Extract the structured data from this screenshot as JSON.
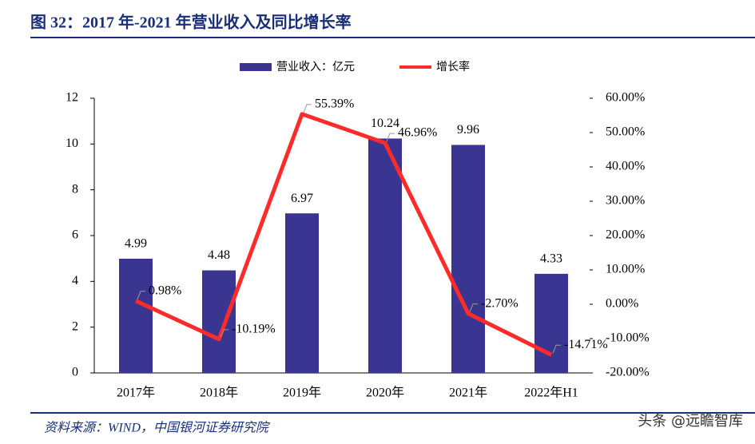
{
  "chart_data": {
    "type": "bar-line",
    "title": "图 32：2017 年-2021 年营业收入及同比增长率",
    "source": "资料来源：WIND，中国银河证券研究院",
    "watermark": "头条 @远瞻智库",
    "categories": [
      "2017年",
      "2018年",
      "2019年",
      "2020年",
      "2021年",
      "2022年H1"
    ],
    "series": [
      {
        "name": "营业收入：亿元",
        "type": "bar",
        "color": "#3b3592",
        "values": [
          4.99,
          4.48,
          6.97,
          10.24,
          9.96,
          4.33
        ]
      },
      {
        "name": "增长率",
        "type": "line",
        "axis": "y2",
        "color": "#ff2b2b",
        "values": [
          0.98,
          -10.19,
          55.39,
          46.96,
          -2.7,
          -14.71
        ],
        "value_labels": [
          "0.98%",
          "-10.19%",
          "55.39%",
          "46.96%",
          "-2.70%",
          "-14.71%"
        ]
      }
    ],
    "ylim": [
      0,
      12
    ],
    "yticks": [
      0,
      2,
      4,
      6,
      8,
      10,
      12
    ],
    "y2lim": [
      -20,
      60
    ],
    "y2ticks": [
      {
        "value": -20,
        "label": "-20.00%"
      },
      {
        "value": -10,
        "label": "-10.00%"
      },
      {
        "value": 0,
        "label": "0.00%"
      },
      {
        "value": 10,
        "label": "10.00%"
      },
      {
        "value": 20,
        "label": "20.00%"
      },
      {
        "value": 30,
        "label": "30.00%"
      },
      {
        "value": 40,
        "label": "40.00%"
      },
      {
        "value": 50,
        "label": "50.00%"
      },
      {
        "value": 60,
        "label": "60.00%"
      }
    ]
  }
}
